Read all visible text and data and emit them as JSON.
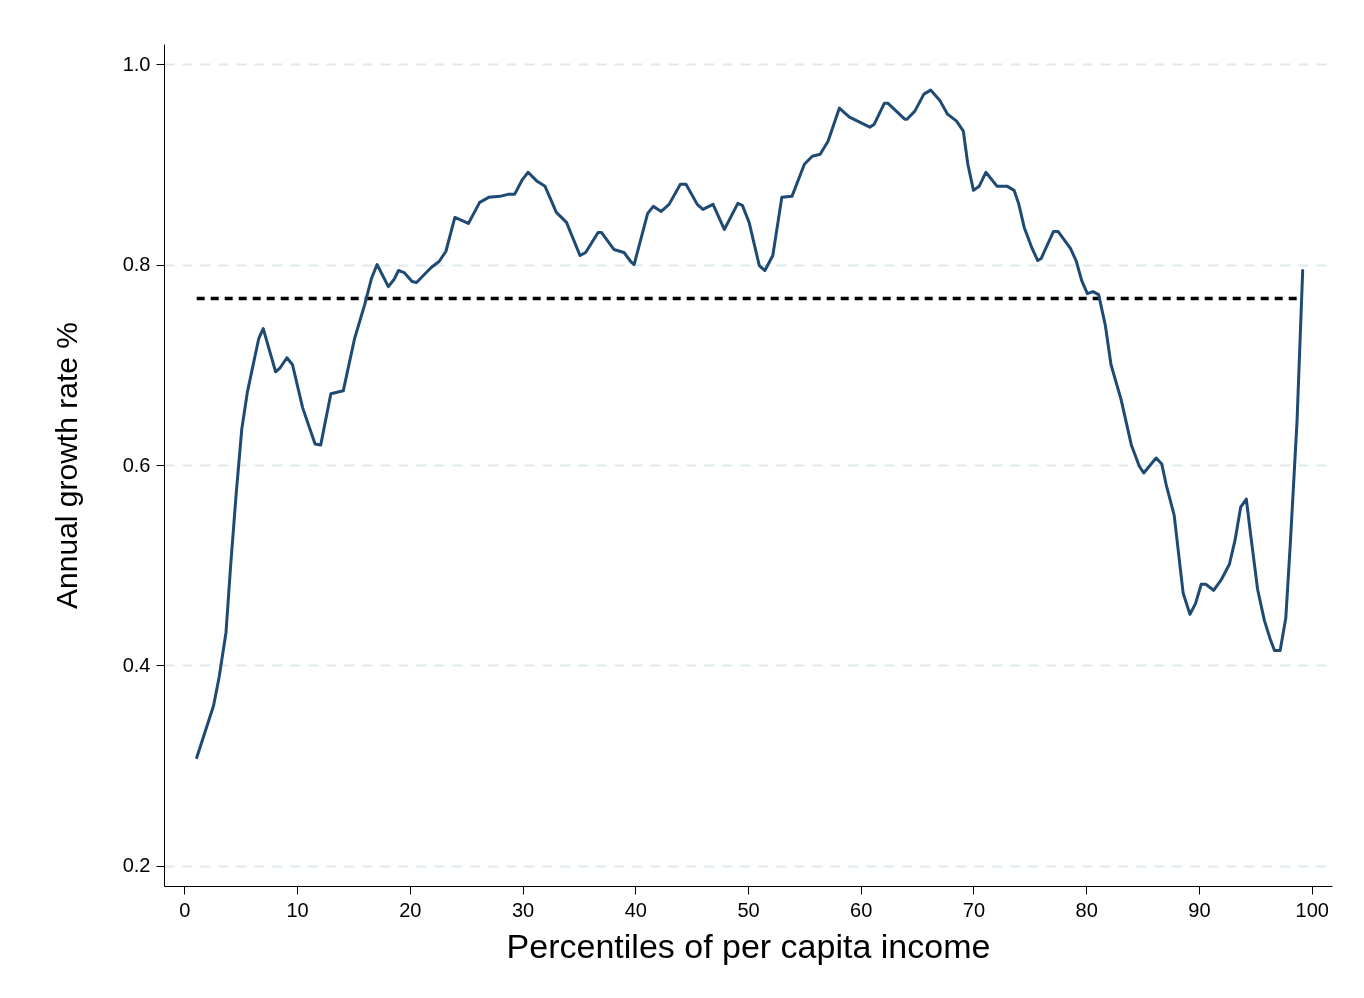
{
  "chart_data": {
    "type": "line",
    "xlabel": "Percentiles of per capita income",
    "ylabel": "Annual growth rate %",
    "xlim": [
      -1.8,
      101.8
    ],
    "ylim": [
      0.18,
      1.02
    ],
    "xticks": [
      0,
      10,
      20,
      30,
      40,
      50,
      60,
      70,
      80,
      90,
      100
    ],
    "yticks": [
      0.2,
      {
        "value": 0.4,
        "label": "0.4"
      },
      {
        "value": 0.6,
        "label": "0.6"
      },
      {
        "value": 0.8,
        "label": "0.8"
      },
      {
        "value": 1.0,
        "label": "1.0"
      }
    ],
    "grid": "y",
    "marker": "none",
    "line_style": "solid",
    "ref_lines": [
      {
        "axis": "y",
        "value": 0.766,
        "line_style": "dashed",
        "color": "#000000"
      }
    ],
    "series": [
      {
        "color": "#1f4a73",
        "x": [
          1.1,
          2.6,
          3.1,
          3.7,
          4.1,
          4.6,
          5.1,
          5.6,
          6.6,
          7.0,
          8.1,
          8.5,
          9.1,
          9.6,
          10.5,
          11.6,
          12.1,
          13.0,
          14.1,
          15.1,
          16.0,
          16.6,
          17.1,
          18.1,
          18.6,
          19.0,
          19.5,
          20.2,
          20.6,
          21.9,
          22.6,
          23.2,
          24.0,
          25.2,
          26.2,
          27.0,
          28.0,
          28.7,
          29.3,
          30.0,
          30.5,
          31.3,
          32.0,
          33.0,
          33.9,
          35.1,
          35.6,
          36.7,
          37.0,
          38.1,
          39.0,
          39.6,
          39.9,
          41.1,
          41.6,
          42.3,
          43.0,
          44.0,
          44.5,
          45.5,
          46.0,
          46.9,
          47.9,
          49.1,
          49.5,
          50.1,
          51.0,
          51.5,
          52.2,
          53.0,
          53.9,
          55.0,
          55.7,
          56.4,
          57.1,
          58.1,
          59.0,
          59.9,
          60.8,
          61.2,
          62.1,
          62.4,
          63.9,
          64.1,
          64.8,
          65.6,
          66.2,
          67.0,
          67.7,
          68.5,
          69.1,
          69.5,
          70.0,
          70.5,
          71.1,
          72.1,
          73.0,
          73.6,
          74.0,
          74.5,
          75.2,
          75.7,
          76.0,
          77.1,
          77.5,
          78.6,
          79.1,
          79.6,
          80.1,
          80.6,
          81.1,
          81.7,
          82.2,
          83.1,
          84.0,
          84.7,
          85.1,
          86.2,
          86.7,
          87.1,
          87.8,
          88.6,
          89.2,
          89.7,
          90.2,
          90.6,
          91.3,
          92.0,
          92.7,
          93.2,
          93.7,
          94.2,
          94.6,
          95.2,
          95.8,
          96.3,
          96.7,
          97.2,
          97.7,
          98.1,
          98.7,
          99.2
        ],
        "values": [
          0.308,
          0.36,
          0.389,
          0.433,
          0.498,
          0.571,
          0.636,
          0.673,
          0.726,
          0.736,
          0.693,
          0.697,
          0.707,
          0.7,
          0.657,
          0.621,
          0.62,
          0.671,
          0.674,
          0.726,
          0.76,
          0.786,
          0.8,
          0.778,
          0.785,
          0.794,
          0.792,
          0.783,
          0.782,
          0.797,
          0.803,
          0.813,
          0.847,
          0.841,
          0.862,
          0.867,
          0.868,
          0.87,
          0.87,
          0.885,
          0.892,
          0.883,
          0.878,
          0.852,
          0.842,
          0.809,
          0.812,
          0.832,
          0.832,
          0.815,
          0.812,
          0.803,
          0.8,
          0.851,
          0.858,
          0.853,
          0.86,
          0.88,
          0.88,
          0.86,
          0.855,
          0.86,
          0.835,
          0.861,
          0.859,
          0.842,
          0.799,
          0.794,
          0.809,
          0.867,
          0.868,
          0.9,
          0.908,
          0.91,
          0.923,
          0.956,
          0.947,
          0.942,
          0.937,
          0.94,
          0.961,
          0.961,
          0.945,
          0.945,
          0.953,
          0.97,
          0.974,
          0.964,
          0.95,
          0.943,
          0.933,
          0.9,
          0.874,
          0.878,
          0.892,
          0.878,
          0.878,
          0.874,
          0.861,
          0.837,
          0.816,
          0.804,
          0.806,
          0.833,
          0.833,
          0.816,
          0.804,
          0.784,
          0.771,
          0.773,
          0.77,
          0.739,
          0.7,
          0.665,
          0.62,
          0.599,
          0.592,
          0.607,
          0.601,
          0.58,
          0.55,
          0.472,
          0.451,
          0.462,
          0.481,
          0.481,
          0.475,
          0.486,
          0.501,
          0.525,
          0.558,
          0.566,
          0.529,
          0.476,
          0.445,
          0.427,
          0.415,
          0.415,
          0.447,
          0.521,
          0.644,
          0.794
        ]
      }
    ]
  }
}
